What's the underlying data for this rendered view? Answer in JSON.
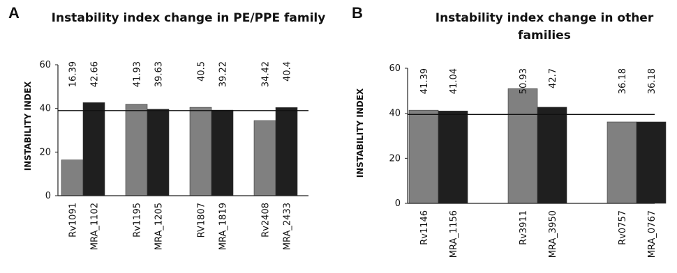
{
  "chart_data": [
    {
      "panel_letter": "A",
      "type": "bar",
      "title": "Instability index change in PE/PPE family",
      "ylabel": "INSTABILITY INDEX",
      "xlabel": "",
      "ylim": [
        0,
        60
      ],
      "yticks": [
        0,
        20,
        40,
        60
      ],
      "reference_line": 39,
      "grid": false,
      "bars": [
        {
          "label": "Rv1091",
          "value": 16.39,
          "value_label": "16.39",
          "color": "#808080"
        },
        {
          "label": "MRA_1102",
          "value": 42.66,
          "value_label": "42.66",
          "color": "#1f1f1f"
        },
        {
          "label": "Rv1195",
          "value": 41.93,
          "value_label": "41.93",
          "color": "#808080"
        },
        {
          "label": "MRA_1205",
          "value": 39.63,
          "value_label": "39.63",
          "color": "#1f1f1f"
        },
        {
          "label": "RV1807",
          "value": 40.5,
          "value_label": "40.5",
          "color": "#808080"
        },
        {
          "label": "MRA_1819",
          "value": 39.22,
          "value_label": "39.22",
          "color": "#1f1f1f"
        },
        {
          "label": "Rv2408",
          "value": 34.42,
          "value_label": "34.42",
          "color": "#808080"
        },
        {
          "label": "MRA_2433",
          "value": 40.4,
          "value_label": "40.4",
          "color": "#1f1f1f"
        }
      ]
    },
    {
      "panel_letter": "B",
      "type": "bar",
      "title": "Instability index change in other families",
      "ylabel": "INSTABILITY INDEX",
      "xlabel": "",
      "ylim": [
        0,
        60
      ],
      "yticks": [
        0,
        20,
        40,
        60
      ],
      "reference_line": 39.5,
      "grid": false,
      "bars": [
        {
          "label": "Rv1146",
          "value": 41.39,
          "value_label": "41.39",
          "color": "#808080"
        },
        {
          "label": "MRA_1156",
          "value": 41.04,
          "value_label": "41.04",
          "color": "#1f1f1f"
        },
        {
          "label": "Rv3911",
          "value": 50.93,
          "value_label": "50.93",
          "color": "#808080"
        },
        {
          "label": "MRA_3950",
          "value": 42.7,
          "value_label": "42.7",
          "color": "#1f1f1f"
        },
        {
          "label": "Rv0757",
          "value": 36.18,
          "value_label": "36.18",
          "color": "#808080"
        },
        {
          "label": "MRA_0767",
          "value": 36.18,
          "value_label": "36.18",
          "color": "#1f1f1f"
        }
      ]
    }
  ]
}
